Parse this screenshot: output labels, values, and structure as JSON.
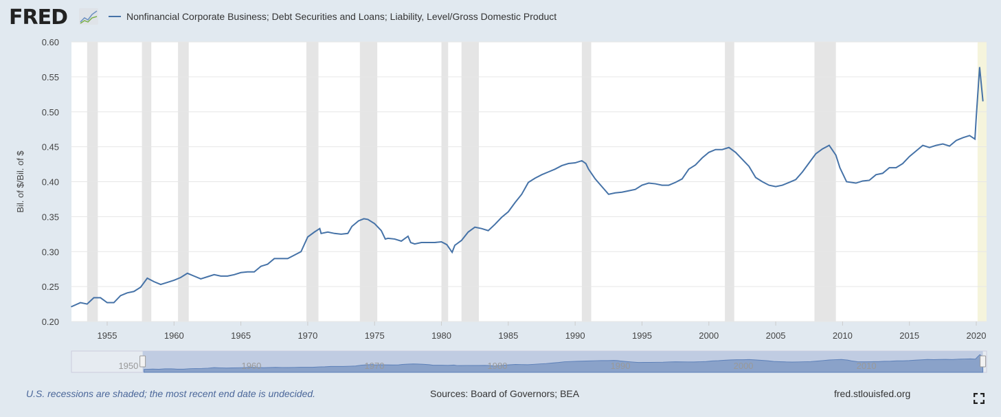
{
  "header": {
    "logo": "FRED",
    "legend_label": "Nonfinancial Corporate Business; Debt Securities and Loans; Liability, Level/Gross Domestic Product"
  },
  "footer": {
    "note": "U.S. recessions are shaded; the most recent end date is undecided.",
    "sources": "Sources: Board of Governors; BEA",
    "site": "fred.stlouisfed.org",
    "fullscreen_icon": "expand-icon"
  },
  "colors": {
    "series": "#4572a7",
    "recession": "#e5e5e5",
    "undecided_recession": "#f5f4dc",
    "navigator_fill": "#8aa2c9",
    "navigator_selected": "#c0cce2"
  },
  "chart_data": {
    "type": "line",
    "ylabel": "Bil. of $/Bil. of $",
    "ylim": [
      0.2,
      0.6
    ],
    "yticks": [
      "0.20",
      "0.25",
      "0.30",
      "0.35",
      "0.40",
      "0.45",
      "0.50",
      "0.55",
      "0.60"
    ],
    "xlim": [
      1952.3,
      2020.75
    ],
    "xticks": [
      "1955",
      "1960",
      "1965",
      "1970",
      "1975",
      "1980",
      "1985",
      "1990",
      "1995",
      "2000",
      "2005",
      "2010",
      "2015",
      "2020"
    ],
    "navigator_ticks": [
      "1950",
      "1960",
      "1970",
      "1980",
      "1990",
      "2000",
      "2010"
    ],
    "grid": true,
    "recessions": [
      [
        1953.5,
        1954.3
      ],
      [
        1957.6,
        1958.3
      ],
      [
        1960.3,
        1961.1
      ],
      [
        1969.9,
        1970.8
      ],
      [
        1973.9,
        1975.2
      ],
      [
        1980.0,
        1980.5
      ],
      [
        1981.5,
        1982.8
      ],
      [
        1990.5,
        1991.2
      ],
      [
        2001.2,
        2001.9
      ],
      [
        2007.9,
        2009.5
      ]
    ],
    "undecided_recession": [
      2020.1,
      2020.75
    ],
    "series": [
      {
        "name": "Nonfinancial Corporate Business; Debt Securities and Loans; Liability, Level/Gross Domestic Product",
        "x": [
          1952.3,
          1953,
          1953.5,
          1954,
          1954.5,
          1955,
          1955.5,
          1956,
          1956.5,
          1957,
          1957.5,
          1958,
          1958.5,
          1959,
          1959.5,
          1960,
          1960.5,
          1961,
          1961.5,
          1962,
          1962.5,
          1963,
          1963.5,
          1964,
          1964.5,
          1965,
          1965.5,
          1966,
          1966.5,
          1967,
          1967.5,
          1968,
          1968.5,
          1969,
          1969.5,
          1970,
          1970.5,
          1970.9,
          1971,
          1971.5,
          1972,
          1972.5,
          1973,
          1973.3,
          1973.8,
          1974.2,
          1974.5,
          1975,
          1975.5,
          1975.8,
          1976,
          1976.5,
          1977,
          1977.5,
          1977.7,
          1978,
          1978.5,
          1979,
          1979.5,
          1980,
          1980.4,
          1980.8,
          1981,
          1981.5,
          1982,
          1982.5,
          1983,
          1983.5,
          1984,
          1984.5,
          1985,
          1985.5,
          1986,
          1986.5,
          1987,
          1987.5,
          1988,
          1988.5,
          1989,
          1989.5,
          1990,
          1990.5,
          1990.8,
          1991,
          1991.5,
          1992,
          1992.5,
          1993,
          1993.5,
          1994,
          1994.5,
          1995,
          1995.5,
          1996,
          1996.5,
          1997,
          1997.5,
          1998,
          1998.5,
          1999,
          1999.5,
          2000,
          2000.5,
          2001,
          2001.5,
          2002,
          2002.5,
          2003,
          2003.5,
          2004,
          2004.5,
          2005,
          2005.5,
          2006,
          2006.5,
          2007,
          2007.5,
          2008,
          2008.5,
          2009,
          2009.5,
          2009.8,
          2010.3,
          2011,
          2011.5,
          2012,
          2012.5,
          2013,
          2013.5,
          2014,
          2014.5,
          2015,
          2015.5,
          2016,
          2016.5,
          2017,
          2017.5,
          2018,
          2018.5,
          2019,
          2019.5,
          2019.9,
          2020.0,
          2020.25,
          2020.5
        ],
        "values": [
          0.221,
          0.227,
          0.225,
          0.234,
          0.234,
          0.227,
          0.227,
          0.237,
          0.241,
          0.243,
          0.249,
          0.262,
          0.257,
          0.253,
          0.256,
          0.259,
          0.263,
          0.269,
          0.265,
          0.261,
          0.264,
          0.267,
          0.265,
          0.265,
          0.267,
          0.27,
          0.271,
          0.271,
          0.279,
          0.282,
          0.29,
          0.29,
          0.29,
          0.295,
          0.3,
          0.321,
          0.328,
          0.333,
          0.326,
          0.328,
          0.326,
          0.325,
          0.326,
          0.336,
          0.344,
          0.347,
          0.346,
          0.34,
          0.33,
          0.318,
          0.319,
          0.318,
          0.315,
          0.322,
          0.313,
          0.311,
          0.313,
          0.313,
          0.313,
          0.314,
          0.31,
          0.299,
          0.309,
          0.316,
          0.328,
          0.335,
          0.333,
          0.33,
          0.339,
          0.349,
          0.357,
          0.37,
          0.382,
          0.399,
          0.405,
          0.41,
          0.414,
          0.418,
          0.423,
          0.426,
          0.427,
          0.43,
          0.426,
          0.418,
          0.404,
          0.393,
          0.382,
          0.384,
          0.385,
          0.387,
          0.389,
          0.395,
          0.398,
          0.397,
          0.395,
          0.395,
          0.399,
          0.404,
          0.418,
          0.424,
          0.434,
          0.442,
          0.446,
          0.446,
          0.449,
          0.442,
          0.432,
          0.422,
          0.406,
          0.4,
          0.395,
          0.393,
          0.395,
          0.399,
          0.403,
          0.414,
          0.427,
          0.44,
          0.447,
          0.452,
          0.438,
          0.42,
          0.4,
          0.398,
          0.401,
          0.402,
          0.41,
          0.412,
          0.42,
          0.42,
          0.426,
          0.436,
          0.444,
          0.452,
          0.449,
          0.452,
          0.454,
          0.451,
          0.459,
          0.463,
          0.466,
          0.461,
          0.493,
          0.564,
          0.515
        ]
      }
    ]
  }
}
